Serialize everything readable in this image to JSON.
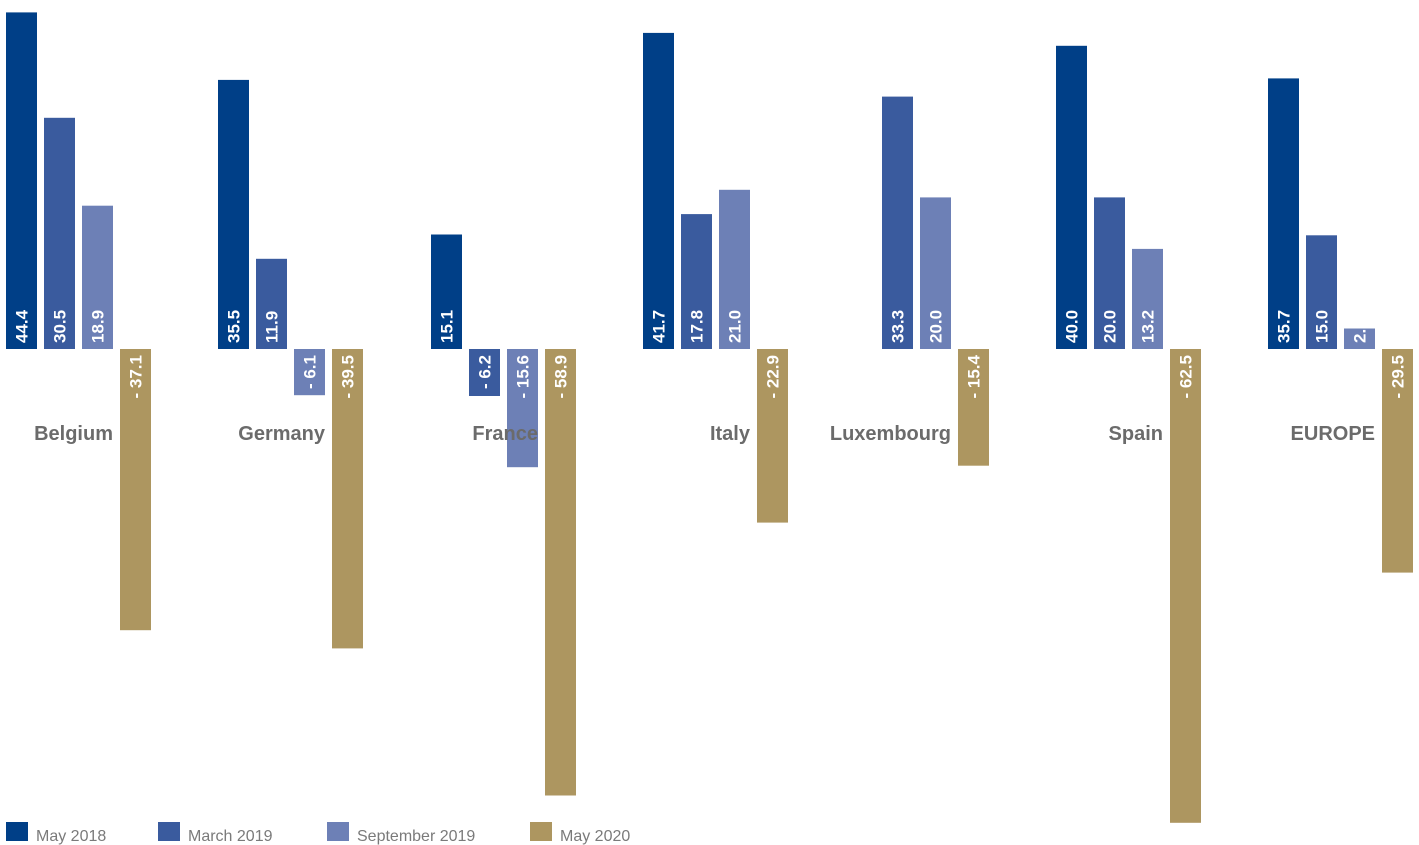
{
  "chart_data": {
    "type": "bar",
    "categories": [
      "Belgium",
      "Germany",
      "France",
      "Italy",
      "Luxembourg",
      "Spain",
      "EUROPE"
    ],
    "series": [
      {
        "name": "May 2018",
        "color": "#003f87",
        "values": [
          44.4,
          35.5,
          15.1,
          41.7,
          null,
          40.0,
          35.7
        ],
        "labels": [
          "44.4",
          "35.5",
          "15.1",
          "41.7",
          "",
          "40.0",
          "35.7"
        ]
      },
      {
        "name": "March 2019",
        "color": "#3a5b9e",
        "values": [
          30.5,
          11.9,
          -6.2,
          17.8,
          33.3,
          20.0,
          15.0
        ],
        "labels": [
          "30.5",
          "11.9",
          "- 6.2",
          "17.8",
          "33.3",
          "20.0",
          "15.0"
        ]
      },
      {
        "name": "September 2019",
        "color": "#6d80b6",
        "values": [
          18.9,
          -6.1,
          -15.6,
          21.0,
          20.0,
          13.2,
          2.7
        ],
        "labels": [
          "18.9",
          "- 6.1",
          "- 15.6",
          "21.0",
          "20.0",
          "13.2",
          "2.7"
        ]
      },
      {
        "name": "May 2020",
        "color": "#ad9660",
        "values": [
          -37.1,
          -39.5,
          -58.9,
          -22.9,
          -15.4,
          -62.5,
          -29.5
        ],
        "labels": [
          "- 37.1",
          "- 39.5",
          "- 58.9",
          "- 22.9",
          "- 15.4",
          "- 62.5",
          "- 29.5"
        ]
      }
    ],
    "legend_position": "bottom-left",
    "grid": false,
    "category_label_color": "#6b6b6b",
    "legend_text_color": "#7a7a7a"
  }
}
